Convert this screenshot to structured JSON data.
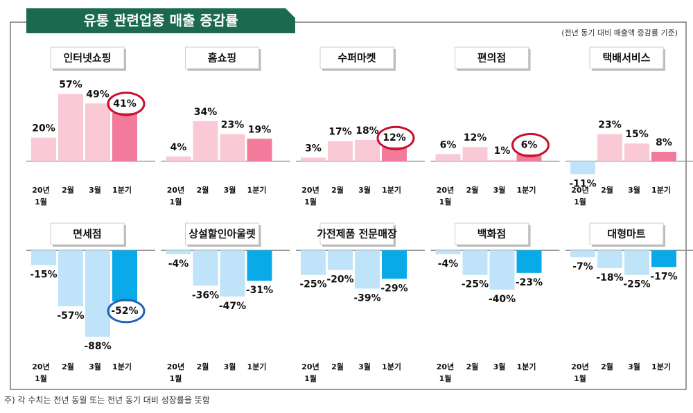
{
  "header": {
    "title": "유통 관련업종 매출 증감률",
    "note": "(전년 동기 대비 매출액 증감률 기준)"
  },
  "footnote": "주) 각 수치는 전년 동월 또는 전년 동기 대비 성장률을 뜻함",
  "chart_data": [
    {
      "type": "bar",
      "title": "인터넷쇼핑",
      "categories": [
        "20년 1월",
        "2월",
        "3월",
        "1분기"
      ],
      "values": [
        20,
        57,
        49,
        41
      ],
      "value_labels": [
        "20%",
        "57%",
        "49%",
        "41%"
      ],
      "colors": [
        "#f9c9d6",
        "#f9c9d6",
        "#f9c9d6",
        "#f27b9b"
      ],
      "ylim": [
        -22,
        78
      ],
      "highlight": true,
      "highlight_color": "#c8102e"
    },
    {
      "type": "bar",
      "title": "홈쇼핑",
      "categories": [
        "20년 1월",
        "2월",
        "3월",
        "1분기"
      ],
      "values": [
        4,
        34,
        23,
        19
      ],
      "value_labels": [
        "4%",
        "34%",
        "23%",
        "19%"
      ],
      "colors": [
        "#f9c9d6",
        "#f9c9d6",
        "#f9c9d6",
        "#f27b9b"
      ],
      "ylim": [
        -22,
        78
      ],
      "highlight": false
    },
    {
      "type": "bar",
      "title": "수퍼마켓",
      "categories": [
        "20년 1월",
        "2월",
        "3월",
        "1분기"
      ],
      "values": [
        3,
        17,
        18,
        12
      ],
      "value_labels": [
        "3%",
        "17%",
        "18%",
        "12%"
      ],
      "colors": [
        "#f9c9d6",
        "#f9c9d6",
        "#f9c9d6",
        "#f27b9b"
      ],
      "ylim": [
        -22,
        78
      ],
      "highlight": true,
      "highlight_color": "#c8102e"
    },
    {
      "type": "bar",
      "title": "편의점",
      "categories": [
        "20년 1월",
        "2월",
        "3월",
        "1분기"
      ],
      "values": [
        6,
        12,
        1,
        6
      ],
      "value_labels": [
        "6%",
        "12%",
        "1%",
        "6%"
      ],
      "colors": [
        "#f9c9d6",
        "#f9c9d6",
        "#f9c9d6",
        "#f27b9b"
      ],
      "ylim": [
        -22,
        78
      ],
      "highlight": true,
      "highlight_color": "#c8102e"
    },
    {
      "type": "bar",
      "title": "택배서비스",
      "categories": [
        "20년 1월",
        "2월",
        "3월",
        "1분기"
      ],
      "values": [
        -11,
        23,
        15,
        8
      ],
      "value_labels": [
        "-11%",
        "23%",
        "15%",
        "8%"
      ],
      "colors": [
        "#bfe3f8",
        "#f9c9d6",
        "#f9c9d6",
        "#f27b9b"
      ],
      "ylim": [
        -22,
        78
      ],
      "highlight": false
    },
    {
      "type": "bar",
      "title": "면세점",
      "categories": [
        "20년 1월",
        "2월",
        "3월",
        "1분기"
      ],
      "values": [
        -15,
        -57,
        -88,
        -52
      ],
      "value_labels": [
        "-15%",
        "-57%",
        "-88%",
        "-52%"
      ],
      "colors": [
        "#bfe3f8",
        "#bfe3f8",
        "#bfe3f8",
        "#0aaae8"
      ],
      "ylim": [
        -105,
        15
      ],
      "highlight": true,
      "highlight_color": "#1f63b8"
    },
    {
      "type": "bar",
      "title": "상설할인아울렛",
      "categories": [
        "20년 1월",
        "2월",
        "3월",
        "1분기"
      ],
      "values": [
        -4,
        -36,
        -47,
        -31
      ],
      "value_labels": [
        "-4%",
        "-36%",
        "-47%",
        "-31%"
      ],
      "colors": [
        "#bfe3f8",
        "#bfe3f8",
        "#bfe3f8",
        "#0aaae8"
      ],
      "ylim": [
        -105,
        15
      ],
      "highlight": false
    },
    {
      "type": "bar",
      "title": "가전제품 전문매장",
      "categories": [
        "20년 1월",
        "2월",
        "3월",
        "1분기"
      ],
      "values": [
        -25,
        -20,
        -39,
        -29
      ],
      "value_labels": [
        "-25%",
        "-20%",
        "-39%",
        "-29%"
      ],
      "colors": [
        "#bfe3f8",
        "#bfe3f8",
        "#bfe3f8",
        "#0aaae8"
      ],
      "ylim": [
        -105,
        15
      ],
      "highlight": false
    },
    {
      "type": "bar",
      "title": "백화점",
      "categories": [
        "20년 1월",
        "2월",
        "3월",
        "1분기"
      ],
      "values": [
        -4,
        -25,
        -40,
        -23
      ],
      "value_labels": [
        "-4%",
        "-25%",
        "-40%",
        "-23%"
      ],
      "colors": [
        "#bfe3f8",
        "#bfe3f8",
        "#bfe3f8",
        "#0aaae8"
      ],
      "ylim": [
        -105,
        15
      ],
      "highlight": false
    },
    {
      "type": "bar",
      "title": "대형마트",
      "categories": [
        "20년 1월",
        "2월",
        "3월",
        "1분기"
      ],
      "values": [
        -7,
        -18,
        -25,
        -17
      ],
      "value_labels": [
        "-7%",
        "-18%",
        "-25%",
        "-17%"
      ],
      "colors": [
        "#bfe3f8",
        "#bfe3f8",
        "#bfe3f8",
        "#0aaae8"
      ],
      "ylim": [
        -105,
        15
      ],
      "highlight": false
    }
  ]
}
